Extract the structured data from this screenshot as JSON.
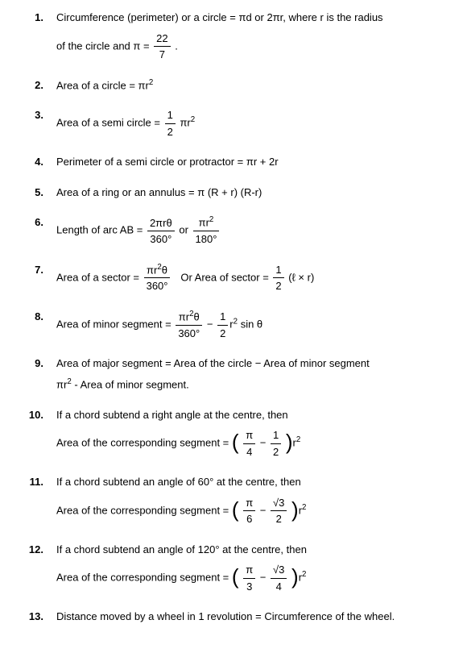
{
  "items": [
    {
      "num": "1."
    },
    {
      "num": "2."
    },
    {
      "num": "3."
    },
    {
      "num": "4."
    },
    {
      "num": "5."
    },
    {
      "num": "6."
    },
    {
      "num": "7."
    },
    {
      "num": "8."
    },
    {
      "num": "9."
    },
    {
      "num": "10."
    },
    {
      "num": "11."
    },
    {
      "num": "12."
    },
    {
      "num": "13."
    }
  ],
  "txt": {
    "i1a": "Circumference (perimeter) or a circle = πd or 2πr, where r is the radius",
    "i1b": "of the circle and π = ",
    "f22": "22",
    "f7": "7",
    "dot": ".",
    "i2": "Area of a circle = πr",
    "sq": "2",
    "i3": "Area of a semi circle = ",
    "f1": "1",
    "f2": "2",
    "pir2": "πr",
    "i4": "Perimeter of a semi circle or protractor = πr + 2r",
    "i5": "Area of a ring or an annulus = π (R + r) (R-r)",
    "i6": "Length of arc AB = ",
    "f2pr0": "2πrθ",
    "f360": "360°",
    "or": "or",
    "fpir2": "πr",
    "f180": "180°",
    "i7": "Area of a sector = ",
    "fpir20": "πr",
    "t0": "θ",
    "orsec": "Or  Area of sector = ",
    "lxr": "(ℓ × r)",
    "i8": "Area of minor segment = ",
    "minus": "−",
    "r2sin": "r",
    "sin0": "sin θ",
    "i9a": "Area of major segment = Area of the circle − Area of minor segment",
    "i9b": "πr",
    "i9c": " - Area of minor segment.",
    "i10a": "If a chord subtend a right angle at the centre, then",
    "i10b": "Area of the corresponding segment = ",
    "pi": "π",
    "f4": "4",
    "f3": "3",
    "f6": "6",
    "r2": "r",
    "i11a": "If a chord subtend an angle of 60° at the centre, then",
    "i11b": "Area of the corresponding segment = ",
    "rt3": "√3",
    "i12a": "If a chord subtend an angle of 120° at the centre, then",
    "i12b": "Area of the corresponding segment = ",
    "i13": "Distance moved by a wheel in 1 revolution = Circumference of the wheel."
  }
}
